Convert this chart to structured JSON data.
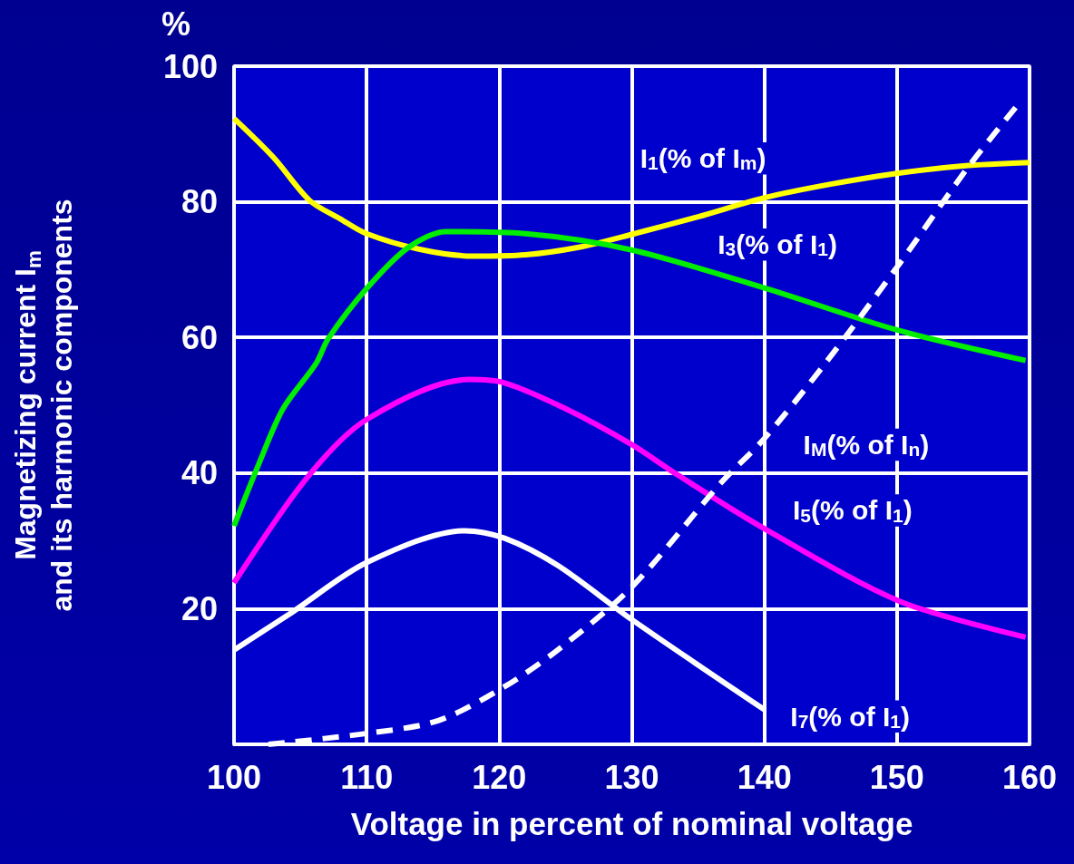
{
  "chart_data": {
    "type": "line",
    "xlabel": "Voltage in percent of nominal voltage",
    "ylabel": "Magnetizing current I$_{m}$\nand its harmonic components",
    "xlim": [
      100,
      160
    ],
    "xticks": [
      100,
      110,
      120,
      130,
      140,
      150,
      160
    ],
    "ylim": [
      0,
      100
    ],
    "yticks": [
      {
        "value": 0,
        "label": null
      },
      20,
      40,
      60,
      80,
      100
    ],
    "grid": true,
    "marker": "none",
    "series": [
      {
        "name": "I$_{1}$(% of I$_{m}$)",
        "color": "#ffff00",
        "line_style": "solid",
        "x": [
          100,
          103,
          105.7,
          108,
          110,
          114,
          118,
          122,
          126,
          130,
          135,
          140,
          145,
          150,
          155,
          160
        ],
        "values": [
          92.3,
          86.5,
          80.2,
          77.5,
          75.3,
          73,
          72,
          72.2,
          73.3,
          75.2,
          77.8,
          80.6,
          82.6,
          84.2,
          85.3,
          85.8
        ]
      },
      {
        "name": "I$_{3}$(% of I$_{1}$)",
        "color": "#00ee00",
        "line_style": "solid",
        "x": [
          100,
          101.9,
          103.7,
          106.2,
          107.1,
          110,
          113.1,
          116,
          122,
          130,
          140,
          150,
          159.7
        ],
        "values": [
          32.2,
          41.5,
          49.5,
          56.2,
          59.8,
          67.2,
          73.2,
          75.6,
          75.3,
          72.9,
          67.3,
          61.1,
          56.6
        ]
      },
      {
        "name": "I$_{5}$(% of I$_{1}$)",
        "color": "#ff00ff",
        "line_style": "solid",
        "x": [
          100,
          105.5,
          110,
          117.7,
          120.4,
          125,
          130,
          133.4,
          140,
          150.2,
          159.7
        ],
        "values": [
          23.8,
          39.3,
          47.9,
          53.8,
          53.3,
          49.5,
          44.2,
          39.8,
          31.8,
          21.1,
          15.8
        ]
      },
      {
        "name": "I$_{7}$(% of I$_{1}$)",
        "color": "#ffffff",
        "line_style": "solid",
        "x": [
          100,
          104.4,
          110,
          117.4,
          120.4,
          124.4,
          130,
          140
        ],
        "values": [
          13.9,
          19.5,
          26.8,
          31.5,
          30.4,
          26.4,
          18.4,
          5.1
        ]
      },
      {
        "name": "I$_{M}$(% of I$_{n}$)",
        "color": "#ffffff",
        "line_style": "dashed",
        "x": [
          102.6,
          110,
          115.4,
          120.4,
          124.4,
          130,
          136.7,
          140,
          144.6,
          150.2,
          155.4,
          159.2
        ],
        "values": [
          0,
          1.6,
          3.5,
          8.5,
          13.9,
          23.2,
          38.5,
          45.1,
          56.2,
          70.9,
          85.2,
          94.5
        ]
      }
    ],
    "annotations": [
      "%"
    ]
  }
}
